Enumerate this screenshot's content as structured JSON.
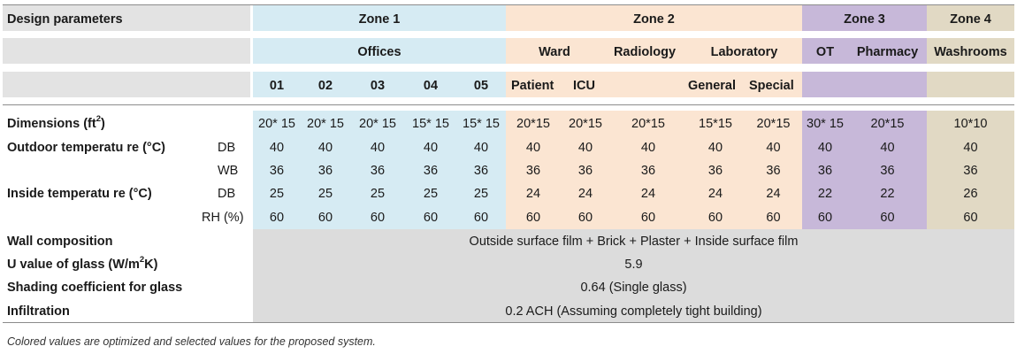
{
  "header": {
    "design_parameters": "Design parameters",
    "zones": [
      "Zone 1",
      "Zone 2",
      "Zone 3",
      "Zone 4"
    ],
    "offices": "Offices",
    "ward": "Ward",
    "radiology": "Radiology",
    "laboratory": "Laboratory",
    "ot": "OT",
    "pharmacy": "Pharmacy",
    "washrooms": "Washrooms",
    "office_numbers": [
      "01",
      "02",
      "03",
      "04",
      "05"
    ],
    "patient": "Patient",
    "icu": "ICU",
    "general": "General",
    "special": "Special"
  },
  "rows": {
    "dimensions": {
      "label": "Dimensions (ft",
      "sup": "2",
      "suffix": ")",
      "values": [
        "20* 15",
        "20* 15",
        "20* 15",
        "15* 15",
        "15* 15",
        "20*15",
        "20*15",
        "20*15",
        "15*15",
        "20*15",
        "30* 15",
        "20*15",
        "10*10"
      ]
    },
    "outdoor_label": "Outdoor temperatu re (°C)",
    "outdoor_db": {
      "sub": "DB",
      "values": [
        "40",
        "40",
        "40",
        "40",
        "40",
        "40",
        "40",
        "40",
        "40",
        "40",
        "40",
        "40",
        "40"
      ]
    },
    "outdoor_wb": {
      "sub": "WB",
      "values": [
        "36",
        "36",
        "36",
        "36",
        "36",
        "36",
        "36",
        "36",
        "36",
        "36",
        "36",
        "36",
        "36"
      ]
    },
    "inside_label": "Inside temperatu re (°C)",
    "inside_db": {
      "sub": "DB",
      "values": [
        "25",
        "25",
        "25",
        "25",
        "25",
        "24",
        "24",
        "24",
        "24",
        "24",
        "22",
        "22",
        "26"
      ]
    },
    "inside_rh": {
      "sub": "RH (%)",
      "values": [
        "60",
        "60",
        "60",
        "60",
        "60",
        "60",
        "60",
        "60",
        "60",
        "60",
        "60",
        "60",
        "60"
      ]
    },
    "wall": {
      "label": "Wall composition",
      "value": "Outside surface film + Brick + Plaster + Inside surface film"
    },
    "u_value": {
      "label": "U value of glass (W/m",
      "sup": "2",
      "suffix": "K)",
      "value": "5.9"
    },
    "shading": {
      "label": "Shading coefficient for glass",
      "value": "0.64 (Single glass)"
    },
    "infiltration": {
      "label": "Infiltration",
      "value": "0.2 ACH (Assuming completely tight building)"
    }
  },
  "footnote": "Colored values are optimized and selected values for the proposed system.",
  "colors": {
    "zone1": "#d6ebf3",
    "zone2": "#fbe5d2",
    "zone3": "#c7b8d9",
    "zone4": "#e1d9c4",
    "grey": "#dcdcdc",
    "header_grey": "#e3e3e3"
  }
}
